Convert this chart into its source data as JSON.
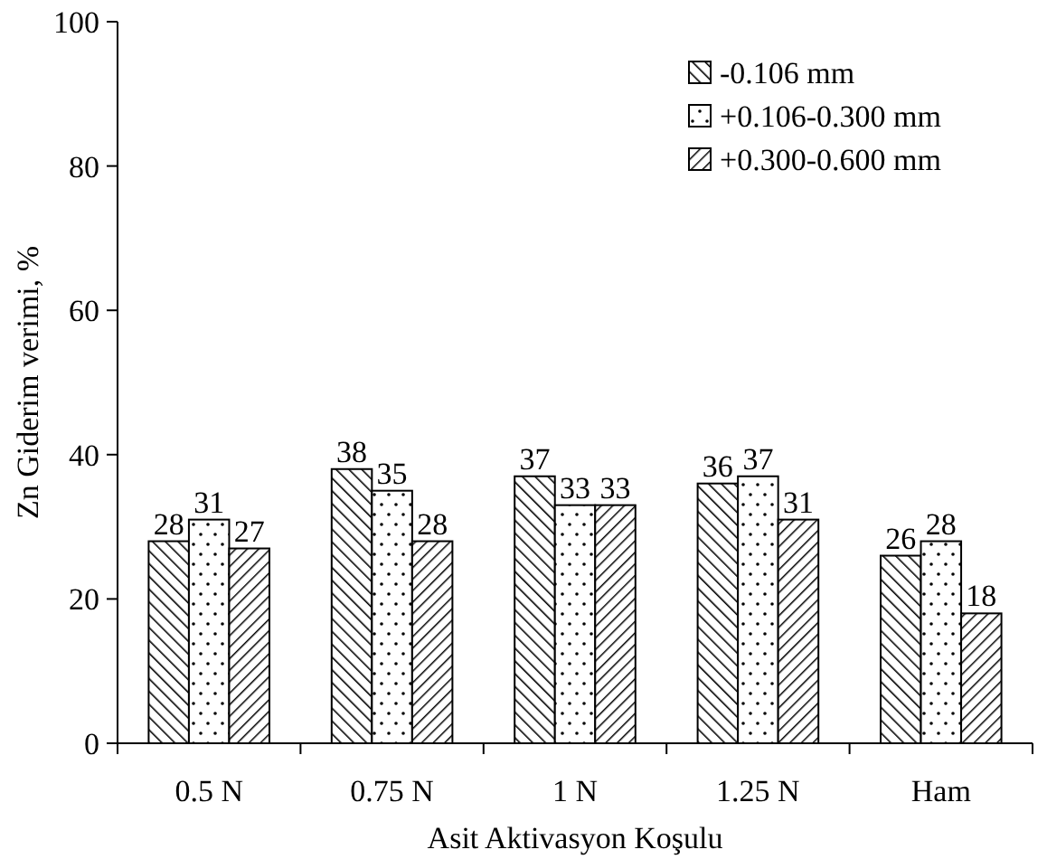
{
  "chart_data": {
    "type": "bar",
    "xlabel": "Asit Aktivasyon Koşulu",
    "ylabel": "Zn Giderim verimi, %",
    "categories": [
      "0.5 N",
      "0.75 N",
      "1 N",
      "1.25 N",
      "Ham"
    ],
    "series": [
      {
        "name": "-0.106 mm",
        "color": "#000000",
        "values": [
          28,
          38,
          37,
          36,
          26
        ]
      },
      {
        "name": "+0.106-0.300 mm",
        "color": "#000000",
        "values": [
          31,
          35,
          33,
          37,
          28
        ]
      },
      {
        "name": "+0.300-0.600 mm",
        "color": "#000000",
        "values": [
          27,
          28,
          33,
          31,
          18
        ]
      }
    ],
    "ylim": [
      0,
      100
    ],
    "yticks": [
      0,
      20,
      40,
      60,
      80,
      100
    ],
    "data_labels": true,
    "legend": "top right",
    "grid": false
  }
}
